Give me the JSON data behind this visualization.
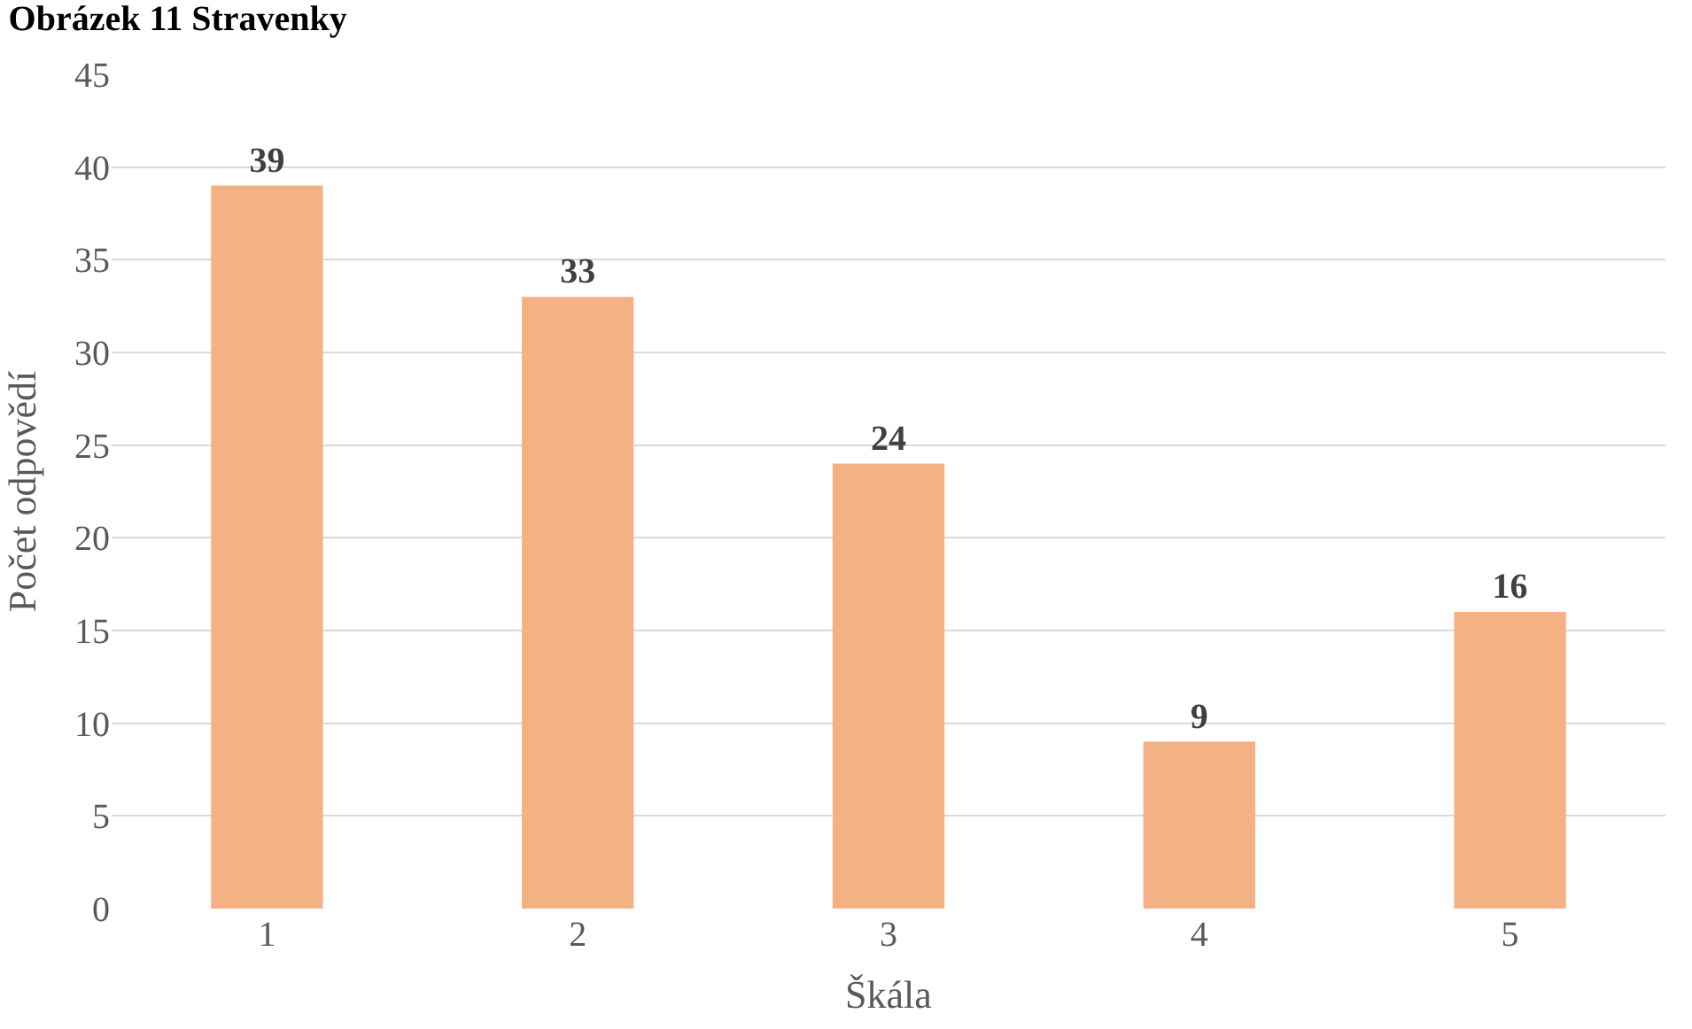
{
  "chart_data": {
    "type": "bar",
    "title": "Obrázek 11 Stravenky",
    "xlabel": "Škála",
    "ylabel": "Počet odpovědí",
    "categories": [
      "1",
      "2",
      "3",
      "4",
      "5"
    ],
    "values": [
      39,
      33,
      24,
      9,
      16
    ],
    "color": "#f4b183",
    "ylim": [
      0,
      45
    ],
    "yticks": [
      0,
      5,
      10,
      15,
      20,
      25,
      30,
      35,
      40,
      45
    ],
    "grid": "y",
    "data_labels": true,
    "legend": false
  }
}
